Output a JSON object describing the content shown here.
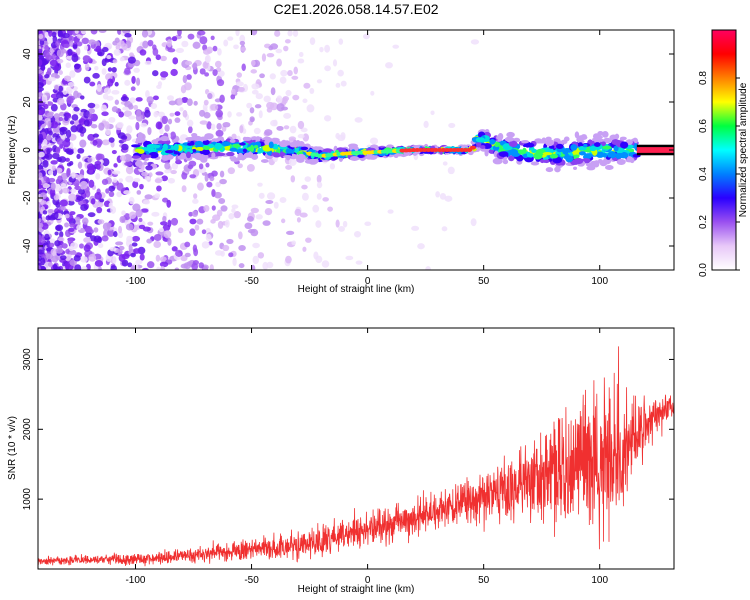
{
  "chart_data": [
    {
      "type": "heatmap",
      "title": "C2E1.2026.058.14.57.E02",
      "xlabel": "Height of straight line (km)",
      "ylabel": "Frequency (Hz)",
      "xlim": [
        -142,
        132
      ],
      "ylim": [
        -50,
        50
      ],
      "x_ticks": [
        "-100",
        "-50",
        "0",
        "50",
        "100"
      ],
      "y_ticks": [
        "-40",
        "-20",
        "0",
        "20",
        "40"
      ],
      "colorbar": {
        "label": "Normalized spectral amplitude",
        "range": [
          0,
          1
        ],
        "ticks": [
          "0.0",
          "0.2",
          "0.4",
          "0.6",
          "0.8"
        ],
        "colors": [
          "#ffffff",
          "#e8c8f8",
          "#9a50f0",
          "#2a00ff",
          "#0080ff",
          "#00ffff",
          "#00ff40",
          "#ffff00",
          "#ff8000",
          "#ff0000",
          "#ff0060"
        ]
      },
      "ridge": [
        {
          "x": -100,
          "y": 0.0,
          "spread": 3.5
        },
        {
          "x": -75,
          "y": 0.8,
          "spread": 3.2
        },
        {
          "x": -50,
          "y": 1.0,
          "spread": 3.0
        },
        {
          "x": -30,
          "y": -0.5,
          "spread": 2.5
        },
        {
          "x": -20,
          "y": -2.5,
          "spread": 2.0
        },
        {
          "x": -10,
          "y": -1.5,
          "spread": 1.8
        },
        {
          "x": 0,
          "y": -1.0,
          "spread": 1.5
        },
        {
          "x": 10,
          "y": -0.5,
          "spread": 1.2
        },
        {
          "x": 20,
          "y": 0.0,
          "spread": 0.8
        },
        {
          "x": 45,
          "y": 0.0,
          "spread": 0.8
        },
        {
          "x": 47,
          "y": 5.0,
          "spread": 3.0
        },
        {
          "x": 60,
          "y": 0.0,
          "spread": 4.0
        },
        {
          "x": 80,
          "y": -1.5,
          "spread": 4.5
        },
        {
          "x": 100,
          "y": -0.5,
          "spread": 4.5
        },
        {
          "x": 115,
          "y": 0.0,
          "spread": 3.5
        },
        {
          "x": 132,
          "y": 0.0,
          "spread": 0.8
        }
      ]
    },
    {
      "type": "line",
      "xlabel": "Height of straight line (km)",
      "ylabel": "SNR (10 * v/v)",
      "xlim": [
        -142,
        132
      ],
      "ylim": [
        0,
        3450
      ],
      "x_ticks": [
        "-100",
        "-50",
        "0",
        "50",
        "100"
      ],
      "y_ticks": [
        "1000",
        "2000",
        "3000"
      ],
      "line_color": "#f03030",
      "envelope": [
        {
          "x": -142,
          "mean": 120,
          "spread": 40
        },
        {
          "x": -100,
          "mean": 140,
          "spread": 60
        },
        {
          "x": -60,
          "mean": 240,
          "spread": 100
        },
        {
          "x": -30,
          "mean": 340,
          "spread": 140
        },
        {
          "x": 0,
          "mean": 540,
          "spread": 180
        },
        {
          "x": 30,
          "mean": 850,
          "spread": 200
        },
        {
          "x": 50,
          "mean": 1050,
          "spread": 280
        },
        {
          "x": 70,
          "mean": 1250,
          "spread": 400
        },
        {
          "x": 90,
          "mean": 1400,
          "spread": 700
        },
        {
          "x": 100,
          "mean": 1550,
          "spread": 900
        },
        {
          "x": 110,
          "mean": 1700,
          "spread": 600
        },
        {
          "x": 120,
          "mean": 2050,
          "spread": 250
        },
        {
          "x": 132,
          "mean": 2350,
          "spread": 150
        }
      ]
    }
  ]
}
